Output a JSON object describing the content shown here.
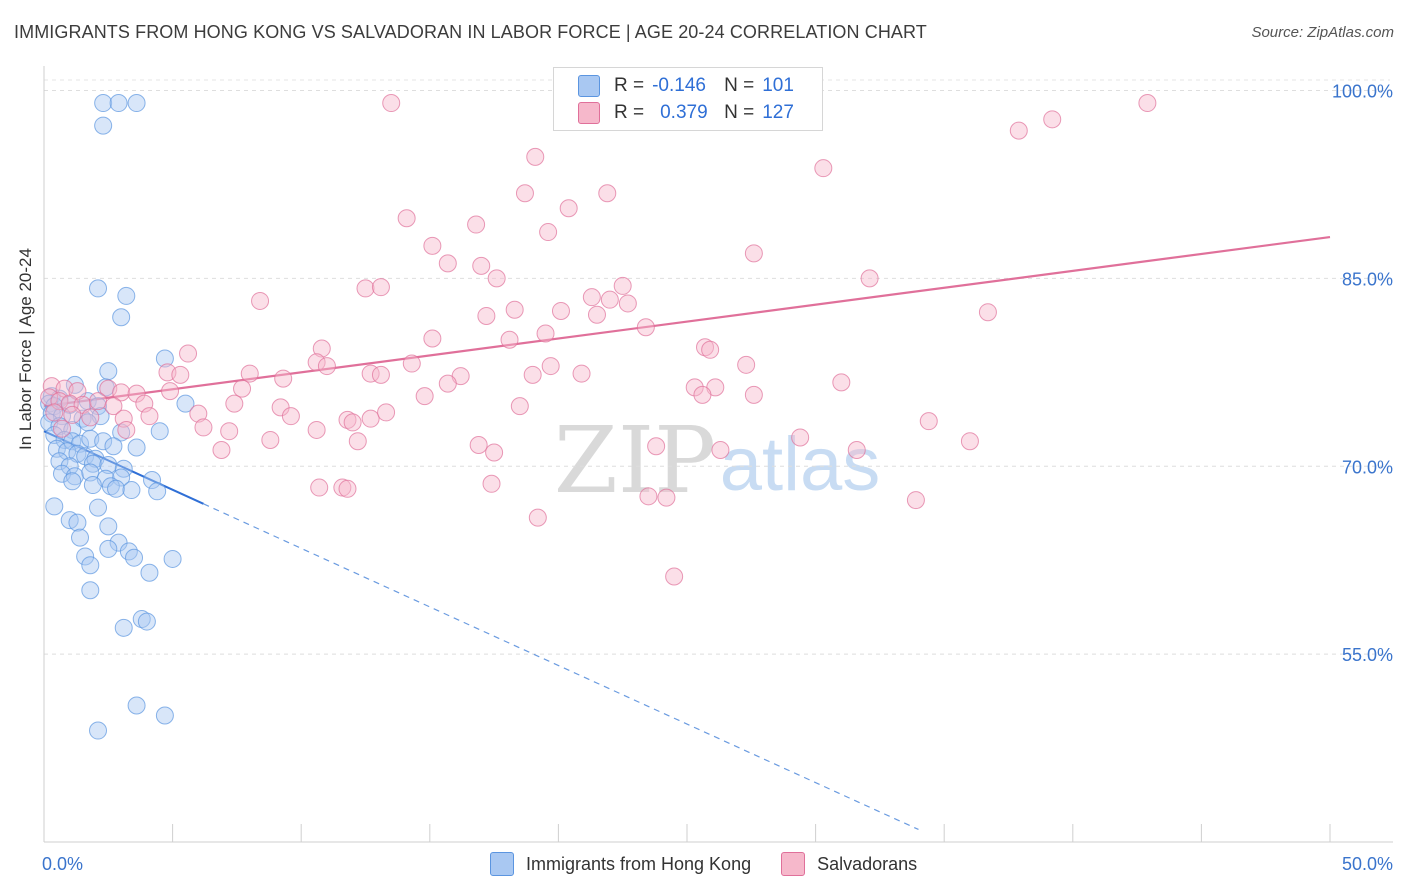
{
  "header": {
    "title": "IMMIGRANTS FROM HONG KONG VS SALVADORAN IN LABOR FORCE | AGE 20-24 CORRELATION CHART",
    "source": "Source: ZipAtlas.com"
  },
  "watermark": {
    "zip": "ZIP",
    "atlas": "atlas"
  },
  "legend": {
    "rows": [
      {
        "r_label": "R =",
        "r_value": "-0.146",
        "n_label": "N =",
        "n_value": "101",
        "color": "#a9c8f2"
      },
      {
        "r_label": "R =",
        "r_value": "0.379",
        "n_label": "N =",
        "n_value": "127",
        "color": "#f6b8cb"
      }
    ]
  },
  "bottom_legend": {
    "items": [
      {
        "label": "Immigrants from Hong Kong",
        "color": "#a9c8f2"
      },
      {
        "label": "Salvadorans",
        "color": "#f6b8cb"
      }
    ]
  },
  "chart_data": {
    "type": "scatter",
    "title": "IMMIGRANTS FROM HONG KONG VS SALVADORAN IN LABOR FORCE | AGE 20-24 CORRELATION CHART",
    "xlabel": "",
    "ylabel": "In Labor Force | Age 20-24",
    "xlim": [
      0,
      50
    ],
    "ylim": [
      40,
      101
    ],
    "x_tick_labels": [
      "0.0%",
      "50.0%"
    ],
    "y_ticks": [
      55,
      70,
      85,
      100
    ],
    "y_tick_labels": [
      "55.0%",
      "70.0%",
      "85.0%",
      "100.0%"
    ],
    "grid": true,
    "legend_position": "top-center",
    "series": [
      {
        "name": "Immigrants from Hong Kong",
        "color": "#5b95e0",
        "fill": "#a9c8f2",
        "r": -0.146,
        "n": 101,
        "trend": {
          "x": [
            0.0,
            6.2
          ],
          "y": [
            72.8,
            67.0
          ],
          "dashed_to": [
            34.0,
            41.0
          ]
        },
        "points": [
          [
            2.3,
            99.0
          ],
          [
            2.9,
            99.0
          ],
          [
            3.6,
            99.0
          ],
          [
            2.3,
            97.2
          ],
          [
            2.1,
            84.2
          ],
          [
            3.2,
            83.6
          ],
          [
            3.0,
            81.9
          ],
          [
            4.7,
            78.6
          ],
          [
            2.5,
            77.6
          ],
          [
            1.2,
            76.5
          ],
          [
            2.4,
            76.3
          ],
          [
            0.3,
            75.6
          ],
          [
            0.6,
            75.4
          ],
          [
            0.2,
            75.0
          ],
          [
            0.4,
            74.8
          ],
          [
            1.0,
            74.9
          ],
          [
            1.7,
            75.2
          ],
          [
            2.1,
            74.8
          ],
          [
            0.3,
            74.2
          ],
          [
            0.7,
            74.0
          ],
          [
            1.5,
            73.8
          ],
          [
            2.2,
            74.0
          ],
          [
            5.5,
            75.0
          ],
          [
            0.2,
            73.5
          ],
          [
            0.6,
            73.2
          ],
          [
            1.1,
            72.9
          ],
          [
            1.7,
            73.5
          ],
          [
            3.0,
            72.7
          ],
          [
            4.5,
            72.8
          ],
          [
            0.4,
            72.5
          ],
          [
            0.8,
            72.1
          ],
          [
            1.1,
            72.0
          ],
          [
            1.4,
            71.8
          ],
          [
            1.8,
            72.2
          ],
          [
            2.3,
            72.0
          ],
          [
            2.7,
            71.6
          ],
          [
            3.6,
            71.5
          ],
          [
            0.5,
            71.4
          ],
          [
            0.9,
            71.2
          ],
          [
            1.3,
            71.0
          ],
          [
            1.6,
            70.8
          ],
          [
            2.0,
            70.6
          ],
          [
            0.6,
            70.4
          ],
          [
            1.0,
            70.0
          ],
          [
            1.9,
            70.2
          ],
          [
            2.5,
            70.1
          ],
          [
            3.1,
            69.8
          ],
          [
            0.7,
            69.4
          ],
          [
            1.2,
            69.2
          ],
          [
            1.8,
            69.5
          ],
          [
            2.4,
            69.0
          ],
          [
            3.0,
            69.1
          ],
          [
            4.2,
            68.9
          ],
          [
            1.1,
            68.8
          ],
          [
            1.9,
            68.5
          ],
          [
            2.6,
            68.4
          ],
          [
            2.8,
            68.2
          ],
          [
            3.4,
            68.1
          ],
          [
            4.4,
            68.0
          ],
          [
            0.4,
            66.8
          ],
          [
            2.1,
            66.7
          ],
          [
            1.0,
            65.7
          ],
          [
            1.3,
            65.5
          ],
          [
            2.5,
            65.2
          ],
          [
            1.4,
            64.3
          ],
          [
            2.9,
            63.9
          ],
          [
            2.5,
            63.4
          ],
          [
            3.3,
            63.2
          ],
          [
            1.6,
            62.8
          ],
          [
            3.5,
            62.7
          ],
          [
            5.0,
            62.6
          ],
          [
            1.8,
            62.1
          ],
          [
            4.1,
            61.5
          ],
          [
            1.8,
            60.1
          ],
          [
            3.8,
            57.8
          ],
          [
            4.0,
            57.6
          ],
          [
            3.1,
            57.1
          ],
          [
            3.6,
            50.9
          ],
          [
            4.7,
            50.1
          ],
          [
            2.1,
            48.9
          ]
        ]
      },
      {
        "name": "Salvadorans",
        "color": "#e0709a",
        "fill": "#f6b8cb",
        "r": 0.379,
        "n": 127,
        "trend": {
          "x": [
            0.0,
            50.0
          ],
          "y": [
            74.8,
            88.3
          ]
        },
        "points": [
          [
            13.5,
            99.0
          ],
          [
            42.9,
            99.0
          ],
          [
            39.2,
            97.7
          ],
          [
            37.9,
            96.8
          ],
          [
            19.1,
            94.7
          ],
          [
            30.3,
            93.8
          ],
          [
            18.7,
            91.8
          ],
          [
            21.9,
            91.8
          ],
          [
            20.4,
            90.6
          ],
          [
            14.1,
            89.8
          ],
          [
            16.8,
            89.3
          ],
          [
            19.6,
            88.7
          ],
          [
            15.1,
            87.6
          ],
          [
            27.6,
            87.0
          ],
          [
            15.7,
            86.2
          ],
          [
            17.0,
            86.0
          ],
          [
            17.6,
            85.0
          ],
          [
            32.1,
            85.0
          ],
          [
            22.5,
            84.4
          ],
          [
            12.5,
            84.2
          ],
          [
            13.1,
            84.3
          ],
          [
            8.4,
            83.2
          ],
          [
            21.3,
            83.5
          ],
          [
            22.0,
            83.3
          ],
          [
            22.7,
            83.0
          ],
          [
            17.2,
            82.0
          ],
          [
            18.3,
            82.5
          ],
          [
            20.1,
            82.4
          ],
          [
            21.5,
            82.1
          ],
          [
            36.7,
            82.3
          ],
          [
            23.4,
            81.1
          ],
          [
            15.1,
            80.2
          ],
          [
            18.1,
            80.1
          ],
          [
            19.5,
            80.6
          ],
          [
            10.8,
            79.4
          ],
          [
            25.7,
            79.5
          ],
          [
            25.9,
            79.3
          ],
          [
            5.6,
            79.0
          ],
          [
            10.6,
            78.3
          ],
          [
            11.0,
            78.0
          ],
          [
            14.3,
            78.2
          ],
          [
            19.7,
            78.0
          ],
          [
            27.3,
            78.1
          ],
          [
            4.8,
            77.5
          ],
          [
            5.3,
            77.3
          ],
          [
            8.0,
            77.4
          ],
          [
            9.3,
            77.0
          ],
          [
            12.7,
            77.4
          ],
          [
            13.1,
            77.3
          ],
          [
            16.2,
            77.2
          ],
          [
            19.0,
            77.3
          ],
          [
            20.9,
            77.4
          ],
          [
            31.0,
            76.7
          ],
          [
            0.3,
            76.4
          ],
          [
            0.8,
            76.2
          ],
          [
            1.3,
            76.0
          ],
          [
            2.5,
            76.2
          ],
          [
            3.0,
            75.9
          ],
          [
            3.6,
            75.8
          ],
          [
            4.9,
            76.0
          ],
          [
            7.7,
            76.2
          ],
          [
            14.8,
            75.6
          ],
          [
            15.7,
            76.6
          ],
          [
            25.3,
            76.3
          ],
          [
            26.1,
            76.3
          ],
          [
            0.2,
            75.5
          ],
          [
            0.6,
            75.2
          ],
          [
            1.0,
            75.0
          ],
          [
            1.5,
            74.9
          ],
          [
            2.1,
            75.2
          ],
          [
            2.7,
            74.8
          ],
          [
            3.9,
            75.0
          ],
          [
            7.4,
            75.0
          ],
          [
            9.2,
            74.7
          ],
          [
            18.5,
            74.8
          ],
          [
            27.6,
            75.7
          ],
          [
            25.6,
            75.7
          ],
          [
            0.4,
            74.3
          ],
          [
            1.1,
            74.1
          ],
          [
            1.8,
            73.9
          ],
          [
            3.1,
            73.8
          ],
          [
            4.1,
            74.0
          ],
          [
            6.0,
            74.2
          ],
          [
            9.6,
            74.0
          ],
          [
            11.8,
            73.7
          ],
          [
            12.0,
            73.5
          ],
          [
            12.7,
            73.8
          ],
          [
            13.3,
            74.3
          ],
          [
            34.4,
            73.6
          ],
          [
            0.7,
            73.0
          ],
          [
            3.2,
            72.9
          ],
          [
            6.2,
            73.1
          ],
          [
            7.2,
            72.8
          ],
          [
            10.6,
            72.9
          ],
          [
            29.4,
            72.3
          ],
          [
            8.8,
            72.1
          ],
          [
            12.2,
            72.0
          ],
          [
            16.9,
            71.7
          ],
          [
            23.8,
            71.6
          ],
          [
            31.6,
            71.3
          ],
          [
            36.0,
            72.0
          ],
          [
            6.9,
            71.3
          ],
          [
            17.5,
            71.1
          ],
          [
            26.3,
            71.3
          ],
          [
            10.7,
            68.3
          ],
          [
            11.6,
            68.3
          ],
          [
            11.8,
            68.2
          ],
          [
            17.4,
            68.6
          ],
          [
            23.5,
            67.6
          ],
          [
            24.2,
            67.5
          ],
          [
            33.9,
            67.3
          ],
          [
            19.2,
            65.9
          ],
          [
            24.5,
            61.2
          ]
        ]
      }
    ]
  }
}
